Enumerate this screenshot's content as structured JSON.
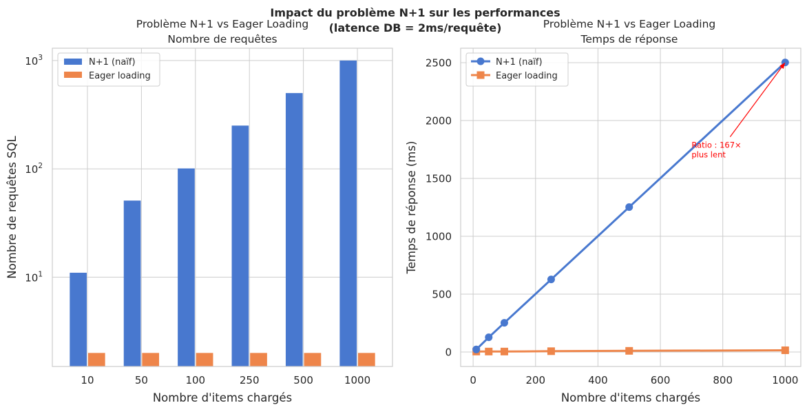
{
  "figure": {
    "suptitle_line1": "Impact du problème N+1 sur les performances",
    "suptitle_line2": "(latence DB = 2ms/requête)"
  },
  "colors": {
    "n1": "#4878cf",
    "eager": "#ee854a",
    "annotation": "#ff0000",
    "grid": "#cccccc"
  },
  "chart_data": [
    {
      "type": "bar",
      "title_line1": "Problème N+1 vs Eager Loading",
      "title_line2": "Nombre de requêtes",
      "xlabel": "Nombre d'items chargés",
      "ylabel": "Nombre de requêtes SQL",
      "yscale": "log",
      "ylim": [
        1.5,
        1300
      ],
      "categories": [
        "10",
        "50",
        "100",
        "250",
        "500",
        "1000"
      ],
      "yticks": [
        {
          "base": "10",
          "exp": "1",
          "value": 10
        },
        {
          "base": "10",
          "exp": "2",
          "value": 100
        },
        {
          "base": "10",
          "exp": "3",
          "value": 1000
        }
      ],
      "series": [
        {
          "name": "N+1 (naïf)",
          "color": "#4878cf",
          "values": [
            11,
            51,
            101,
            251,
            501,
            1001
          ]
        },
        {
          "name": "Eager loading",
          "color": "#ee854a",
          "values": [
            2,
            2,
            2,
            2,
            2,
            2
          ]
        }
      ],
      "legend": "top-left"
    },
    {
      "type": "line",
      "title_line1": "Problème N+1 vs Eager Loading",
      "title_line2": "Temps de réponse",
      "xlabel": "Nombre d'items chargés",
      "ylabel": "Temps de réponse (ms)",
      "xlim": [
        -40,
        1050
      ],
      "ylim": [
        -125,
        2625
      ],
      "xticks": [
        0,
        200,
        400,
        600,
        800,
        1000
      ],
      "yticks": [
        0,
        500,
        1000,
        1500,
        2000,
        2500
      ],
      "x": [
        10,
        50,
        100,
        250,
        500,
        1000
      ],
      "series": [
        {
          "name": "N+1 (naïf)",
          "color": "#4878cf",
          "marker": "circle",
          "values": [
            22,
            127,
            252,
            627,
            1252,
            2502
          ]
        },
        {
          "name": "Eager loading",
          "color": "#ee854a",
          "marker": "square",
          "values": [
            4,
            4,
            4,
            7,
            10,
            15
          ]
        }
      ],
      "annotation": {
        "line1": "Ratio : 167×",
        "line2": "plus lent",
        "text_at": [
          700,
          1800
        ],
        "arrow_to": [
          1000,
          2502
        ]
      },
      "legend": "top-left"
    }
  ]
}
